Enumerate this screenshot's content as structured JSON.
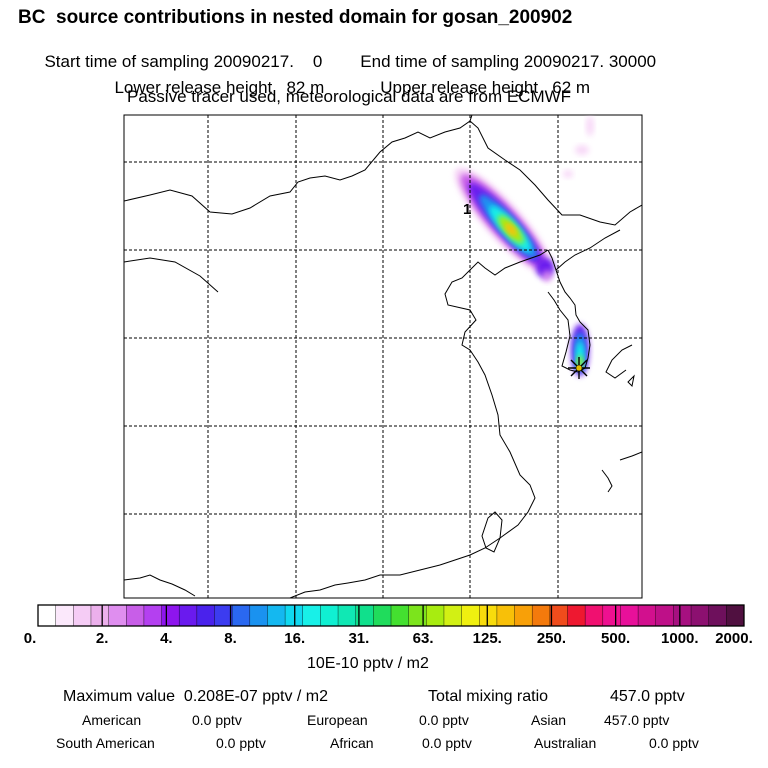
{
  "header": {
    "title": "BC  source contributions in nested domain for gosan_200902",
    "start_label": "Start time of sampling 20090217.    0",
    "end_label": "End time of sampling 20090217. 30000",
    "lower_label": "Lower release height   82 m",
    "upper_label": "Upper release height   62 m",
    "tracer_note": "Passive tracer used, meteorological data are from ECMWF"
  },
  "map": {
    "marker_label": "1",
    "station_color": "#e2c000"
  },
  "colorbar": {
    "colors": [
      "#ffffff",
      "#fbe8fb",
      "#f5ccf5",
      "#ecb0ec",
      "#df8eef",
      "#c85ee8",
      "#b440f0",
      "#8e15ee",
      "#6a1aee",
      "#4a22ec",
      "#3c3cf0",
      "#2a68f0",
      "#1a92f0",
      "#14b8f0",
      "#10d8f0",
      "#18f0e8",
      "#10f0d2",
      "#10e8b4",
      "#10e08c",
      "#20dc5c",
      "#44e030",
      "#7ce41c",
      "#a8ec10",
      "#d2f014",
      "#f0f010",
      "#f8dc0c",
      "#f8c008",
      "#f8a008",
      "#f47a0c",
      "#f04c1c",
      "#ee1830",
      "#f01070",
      "#ee1090",
      "#e8109a",
      "#d2108e",
      "#be1088",
      "#a61080",
      "#8c1070",
      "#6e105c",
      "#501040"
    ],
    "tick_labels": [
      "0.",
      "2.",
      "4.",
      "8.",
      "16.",
      "31.",
      "63.",
      "125.",
      "250.",
      "500.",
      "1000.",
      "2000."
    ],
    "unit": "10E-10 pptv / m2"
  },
  "stats": {
    "max_label": "Maximum value  0.208E-07 pptv / m2",
    "total_label": "Total mixing ratio",
    "total_value": "457.0 pptv",
    "regions": [
      {
        "name": "American",
        "value": "0.0 pptv"
      },
      {
        "name": "European",
        "value": "0.0 pptv"
      },
      {
        "name": "Asian",
        "value": "457.0 pptv"
      },
      {
        "name": "South American",
        "value": "0.0 pptv"
      },
      {
        "name": "African",
        "value": "0.0 pptv"
      },
      {
        "name": "Australian",
        "value": "0.0 pptv"
      }
    ]
  },
  "chart_data": {
    "type": "heatmap",
    "title": "BC  source contributions in nested domain for gosan_200902",
    "colorbar_levels": [
      0,
      2,
      4,
      8,
      16,
      31,
      63,
      125,
      250,
      500,
      1000,
      2000
    ],
    "colorbar_unit": "10E-10 pptv / m2",
    "max_value": "0.208E-07 pptv / m2",
    "total_mixing_ratio_pptv": 457.0,
    "grid": "dashed lat/lon graticule"
  }
}
